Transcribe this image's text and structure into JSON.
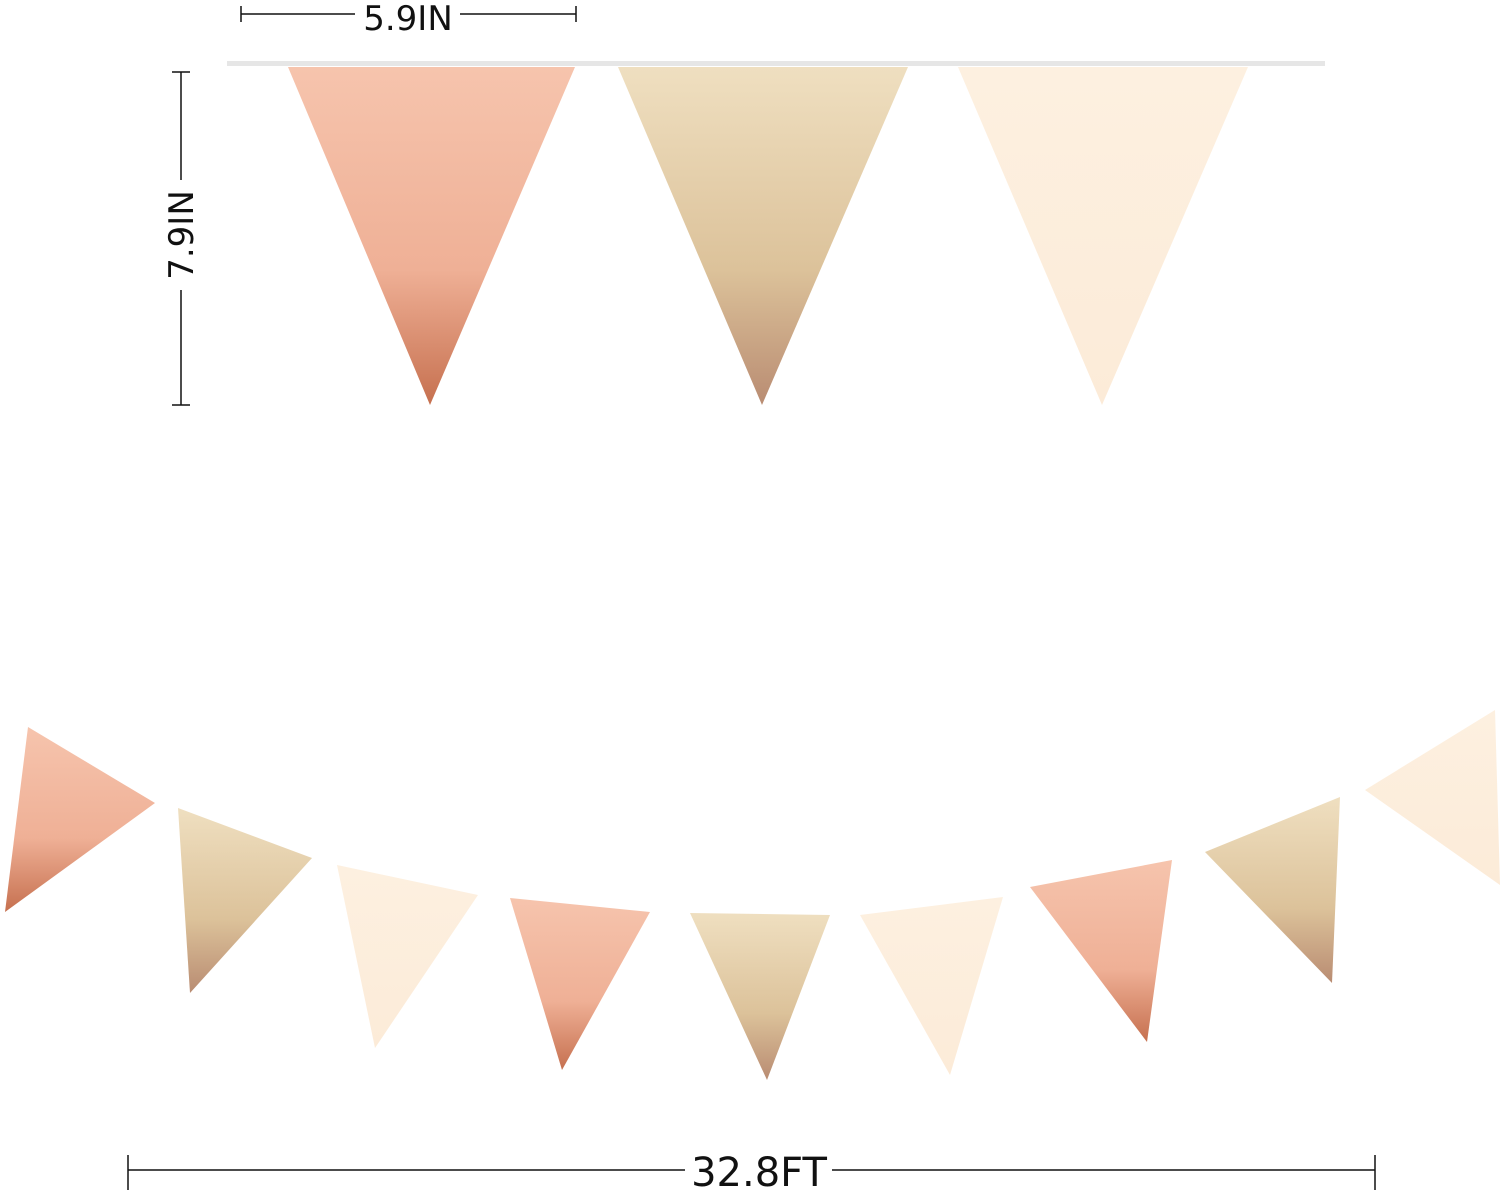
{
  "dimensions": {
    "flag_width": "5.9IN",
    "flag_height": "7.9IN",
    "total_length": "32.8FT"
  },
  "colors": {
    "rose_gold": "#f2b9a0",
    "gold": "#e8d3b0",
    "cream": "#fdeedd",
    "string": "#e6e6e6",
    "dimension_line": "#111111"
  },
  "flags": {
    "top_row": [
      "rose_gold",
      "gold",
      "cream"
    ],
    "bottom_row": [
      "rose_gold",
      "gold",
      "cream",
      "rose_gold",
      "gold",
      "cream",
      "rose_gold",
      "gold",
      "cream"
    ]
  }
}
